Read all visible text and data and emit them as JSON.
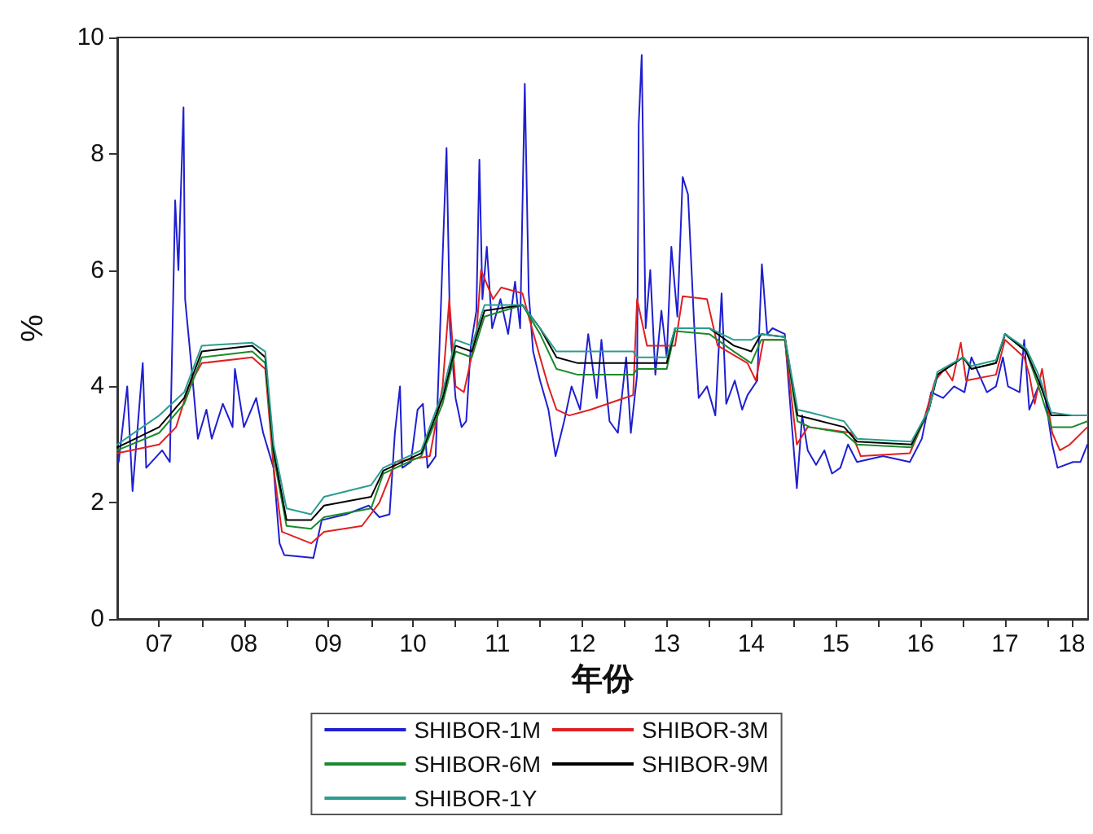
{
  "chart_data": {
    "type": "line",
    "xlabel": "年份",
    "ylabel": "%",
    "xlim": [
      "2007-01-01",
      "2018-06-25"
    ],
    "ylim": [
      0,
      10
    ],
    "yticks": [
      0,
      2,
      4,
      6,
      8,
      10
    ],
    "xticks": [
      {
        "value": "2008-01-01",
        "label": null
      },
      {
        "value": "2009-01-01",
        "label": null
      },
      {
        "value": "2010-01-01",
        "label": null
      },
      {
        "value": "2011-01-01",
        "label": null
      },
      {
        "value": "2012-01-01",
        "label": null
      },
      {
        "value": "2013-01-01",
        "label": null
      },
      {
        "value": "2014-01-01",
        "label": null
      },
      {
        "value": "2015-01-01",
        "label": null
      },
      {
        "value": "2016-01-01",
        "label": null
      },
      {
        "value": "2017-01-01",
        "label": null
      },
      {
        "value": "2018-01-01",
        "label": null
      },
      {
        "value": "2007-07-01",
        "label": "07"
      },
      {
        "value": "2008-07-01",
        "label": "08"
      },
      {
        "value": "2009-07-01",
        "label": "09"
      },
      {
        "value": "2010-07-01",
        "label": "10"
      },
      {
        "value": "2011-07-01",
        "label": "11"
      },
      {
        "value": "2012-07-01",
        "label": "12"
      },
      {
        "value": "2013-07-01",
        "label": "13"
      },
      {
        "value": "2014-07-01",
        "label": "14"
      },
      {
        "value": "2015-07-01",
        "label": "15"
      },
      {
        "value": "2016-07-01",
        "label": "16"
      },
      {
        "value": "2017-07-01",
        "label": "17"
      },
      {
        "value": "2018-04-15",
        "label": "18"
      }
    ],
    "grid": false,
    "legend": "bottom",
    "marker": "none",
    "line_style": "solid",
    "x": [
      "2007-01-01",
      "2007-07-01",
      "2007-10-17",
      "2008-01-01",
      "2008-08-06",
      "2008-10-01",
      "2008-11-06",
      "2009-01-01",
      "2009-04-17",
      "2009-06-12",
      "2010-01-01",
      "2010-02-23",
      "2010-08-06",
      "2010-11-06",
      "2011-01-01",
      "2011-03-12",
      "2011-05-06",
      "2011-10-17",
      "2012-01-01",
      "2012-03-12",
      "2012-06-12",
      "2013-02-06",
      "2013-02-23",
      "2013-07-01",
      "2013-08-06",
      "2014-01-01",
      "2014-04-17",
      "2014-07-01",
      "2014-08-13",
      "2014-11-23",
      "2015-01-17",
      "2015-03-12",
      "2015-08-06",
      "2015-10-01",
      "2016-05-23",
      "2016-08-06",
      "2016-09-12",
      "2017-01-01",
      "2017-02-06",
      "2017-05-23",
      "2017-07-01",
      "2017-10-01",
      "2017-11-23",
      "2018-01-17",
      "2018-04-17",
      "2018-06-22"
    ],
    "series": [
      {
        "name": "SHIBOR-1M",
        "color": "#1f1fd0",
        "x": [
          "2007-01-07",
          "2007-02-13",
          "2007-03-08",
          "2007-04-21",
          "2007-05-06",
          "2007-07-14",
          "2007-08-16",
          "2007-09-08",
          "2007-09-22",
          "2007-10-14",
          "2007-10-21",
          "2007-11-16",
          "2007-12-15",
          "2008-01-21",
          "2008-02-13",
          "2008-04-01",
          "2008-05-13",
          "2008-05-23",
          "2008-07-01",
          "2008-08-23",
          "2008-09-22",
          "2008-11-06",
          "2008-12-02",
          "2008-12-22",
          "2009-04-27",
          "2009-06-02",
          "2009-09-15",
          "2009-12-22",
          "2010-02-06",
          "2010-03-22",
          "2010-04-14",
          "2010-05-06",
          "2010-05-16",
          "2010-06-22",
          "2010-07-21",
          "2010-08-13",
          "2010-09-02",
          "2010-10-07",
          "2010-11-06",
          "2010-11-23",
          "2010-12-08",
          "2011-01-01",
          "2011-01-27",
          "2011-02-16",
          "2011-03-08",
          "2011-04-01",
          "2011-04-14",
          "2011-04-27",
          "2011-05-16",
          "2011-06-08",
          "2011-07-14",
          "2011-08-16",
          "2011-09-15",
          "2011-10-07",
          "2011-10-27",
          "2011-11-13",
          "2011-12-02",
          "2012-01-01",
          "2012-02-06",
          "2012-03-08",
          "2012-04-14",
          "2012-05-16",
          "2012-06-22",
          "2012-07-27",
          "2012-09-02",
          "2012-09-22",
          "2012-10-27",
          "2012-12-02",
          "2013-01-07",
          "2013-01-27",
          "2013-02-23",
          "2013-03-02",
          "2013-03-15",
          "2013-04-01",
          "2013-04-21",
          "2013-05-13",
          "2013-06-08",
          "2013-07-01",
          "2013-07-21",
          "2013-08-16",
          "2013-09-08",
          "2013-10-01",
          "2013-10-27",
          "2013-11-16",
          "2013-12-22",
          "2014-01-27",
          "2014-02-23",
          "2014-03-15",
          "2014-04-21",
          "2014-05-23",
          "2014-06-15",
          "2014-07-27",
          "2014-08-16",
          "2014-09-08",
          "2014-10-01",
          "2014-11-23",
          "2014-12-22",
          "2015-01-14",
          "2015-02-06",
          "2015-03-02",
          "2015-04-07",
          "2015-05-13",
          "2015-06-15",
          "2015-07-21",
          "2015-08-23",
          "2015-10-01",
          "2016-01-21",
          "2016-05-16",
          "2016-07-07",
          "2016-08-16",
          "2016-10-07",
          "2016-11-23",
          "2017-01-07",
          "2017-02-06",
          "2017-04-14",
          "2017-05-23",
          "2017-06-22",
          "2017-07-14",
          "2017-09-02",
          "2017-09-22",
          "2017-10-14",
          "2017-12-02",
          "2017-12-22",
          "2018-01-21",
          "2018-02-13",
          "2018-04-21",
          "2018-05-23",
          "2018-06-22"
        ],
        "values": [
          2.7,
          4.0,
          2.2,
          4.4,
          2.6,
          2.9,
          2.7,
          7.2,
          6.0,
          8.8,
          5.5,
          4.4,
          3.1,
          3.6,
          3.1,
          3.7,
          3.3,
          4.3,
          3.3,
          3.8,
          3.2,
          2.6,
          1.3,
          1.1,
          1.05,
          1.7,
          1.8,
          1.95,
          1.75,
          1.8,
          3.2,
          4.0,
          2.6,
          2.7,
          3.6,
          3.7,
          2.6,
          2.8,
          6.2,
          8.1,
          5.0,
          3.8,
          3.3,
          3.4,
          4.7,
          5.3,
          7.9,
          5.5,
          6.4,
          5.0,
          5.5,
          4.9,
          5.8,
          5.0,
          9.2,
          5.6,
          4.6,
          4.1,
          3.6,
          2.8,
          3.4,
          4.0,
          3.6,
          4.9,
          3.8,
          4.8,
          3.4,
          3.2,
          4.5,
          3.2,
          4.2,
          8.5,
          9.7,
          5.0,
          6.0,
          4.2,
          5.3,
          4.5,
          6.4,
          5.2,
          7.6,
          7.3,
          5.1,
          3.8,
          4.0,
          3.5,
          5.6,
          3.7,
          4.1,
          3.6,
          3.85,
          4.1,
          6.1,
          4.9,
          5.0,
          4.9,
          3.4,
          2.25,
          3.5,
          2.9,
          2.65,
          2.9,
          2.5,
          2.6,
          3.0,
          2.7,
          2.8,
          2.7,
          3.1,
          3.9,
          3.8,
          4.0,
          3.9,
          4.5,
          3.9,
          4.0,
          4.5,
          4.0,
          3.9,
          4.8,
          3.6,
          4.1,
          3.8,
          3.0,
          2.6,
          2.7,
          2.7,
          3.0
        ]
      },
      {
        "name": "SHIBOR-3M",
        "color": "#e02020",
        "x": [
          "2007-01-01",
          "2007-07-01",
          "2007-09-12",
          "2007-11-06",
          "2008-01-01",
          "2008-08-06",
          "2008-10-01",
          "2008-11-06",
          "2008-12-12",
          "2009-04-17",
          "2009-06-12",
          "2009-11-23",
          "2010-02-06",
          "2010-04-17",
          "2010-09-12",
          "2010-11-06",
          "2010-12-05",
          "2011-01-01",
          "2011-02-06",
          "2011-04-01",
          "2011-04-21",
          "2011-06-12",
          "2011-07-17",
          "2011-10-17",
          "2011-11-13",
          "2012-01-01",
          "2012-02-06",
          "2012-03-12",
          "2012-05-06",
          "2012-08-06",
          "2013-02-06",
          "2013-02-23",
          "2013-04-07",
          "2013-08-06",
          "2013-09-08",
          "2013-12-22",
          "2014-02-06",
          "2014-06-15",
          "2014-07-21",
          "2014-08-23",
          "2014-11-23",
          "2015-01-14",
          "2015-03-02",
          "2015-09-08",
          "2015-10-17",
          "2016-05-16",
          "2016-07-14",
          "2016-09-02",
          "2016-10-14",
          "2016-11-16",
          "2016-12-22",
          "2017-01-14",
          "2017-05-23",
          "2017-07-01",
          "2017-09-22",
          "2017-10-14",
          "2017-11-06",
          "2017-12-08",
          "2018-01-21",
          "2018-02-23",
          "2018-04-07",
          "2018-06-22"
        ],
        "values": [
          2.85,
          3.0,
          3.3,
          4.0,
          4.4,
          4.5,
          4.3,
          2.6,
          1.5,
          1.3,
          1.5,
          1.6,
          2.0,
          2.7,
          2.8,
          4.0,
          5.5,
          4.0,
          3.9,
          4.9,
          6.0,
          5.5,
          5.7,
          5.6,
          5.2,
          4.5,
          4.0,
          3.6,
          3.5,
          3.6,
          3.85,
          5.5,
          4.7,
          4.7,
          5.55,
          5.5,
          4.7,
          4.4,
          4.1,
          4.8,
          4.8,
          3.0,
          3.3,
          3.2,
          2.8,
          2.85,
          3.4,
          4.1,
          4.3,
          4.1,
          4.75,
          4.1,
          4.2,
          4.8,
          4.5,
          4.2,
          3.7,
          4.3,
          3.2,
          2.9,
          3.0,
          3.3
        ]
      },
      {
        "name": "SHIBOR-6M",
        "color": "#1a8a2a",
        "values": [
          2.9,
          3.2,
          3.7,
          4.5,
          4.6,
          4.4,
          2.8,
          1.6,
          1.55,
          1.75,
          1.9,
          2.5,
          2.8,
          3.7,
          4.6,
          4.5,
          5.2,
          5.4,
          4.9,
          4.3,
          4.2,
          4.2,
          4.3,
          4.3,
          4.95,
          4.9,
          4.6,
          4.4,
          4.8,
          4.8,
          3.4,
          3.3,
          3.2,
          3.0,
          2.95,
          3.6,
          4.2,
          4.5,
          4.3,
          4.4,
          4.9,
          4.6,
          4.0,
          3.3,
          3.3,
          3.4
        ]
      },
      {
        "name": "SHIBOR-9M",
        "color": "#000000",
        "values": [
          2.95,
          3.3,
          3.8,
          4.6,
          4.7,
          4.5,
          2.9,
          1.7,
          1.7,
          1.95,
          2.1,
          2.55,
          2.85,
          3.8,
          4.7,
          4.6,
          5.3,
          5.4,
          5.0,
          4.5,
          4.4,
          4.4,
          4.4,
          4.4,
          5.0,
          5.0,
          4.7,
          4.6,
          4.9,
          4.85,
          3.5,
          3.45,
          3.3,
          3.05,
          3.0,
          3.6,
          4.2,
          4.5,
          4.3,
          4.4,
          4.9,
          4.6,
          4.1,
          3.5,
          3.5,
          3.5
        ]
      },
      {
        "name": "SHIBOR-1Y",
        "color": "#2a9d8f",
        "values": [
          3.0,
          3.5,
          3.9,
          4.7,
          4.75,
          4.6,
          3.0,
          1.9,
          1.8,
          2.1,
          2.3,
          2.6,
          2.9,
          3.9,
          4.8,
          4.7,
          5.4,
          5.4,
          5.0,
          4.6,
          4.6,
          4.6,
          4.5,
          4.5,
          5.0,
          5.0,
          4.8,
          4.8,
          4.9,
          4.85,
          3.6,
          3.55,
          3.4,
          3.1,
          3.05,
          3.6,
          4.25,
          4.5,
          4.35,
          4.45,
          4.9,
          4.65,
          4.2,
          3.55,
          3.5,
          3.5
        ]
      }
    ]
  }
}
